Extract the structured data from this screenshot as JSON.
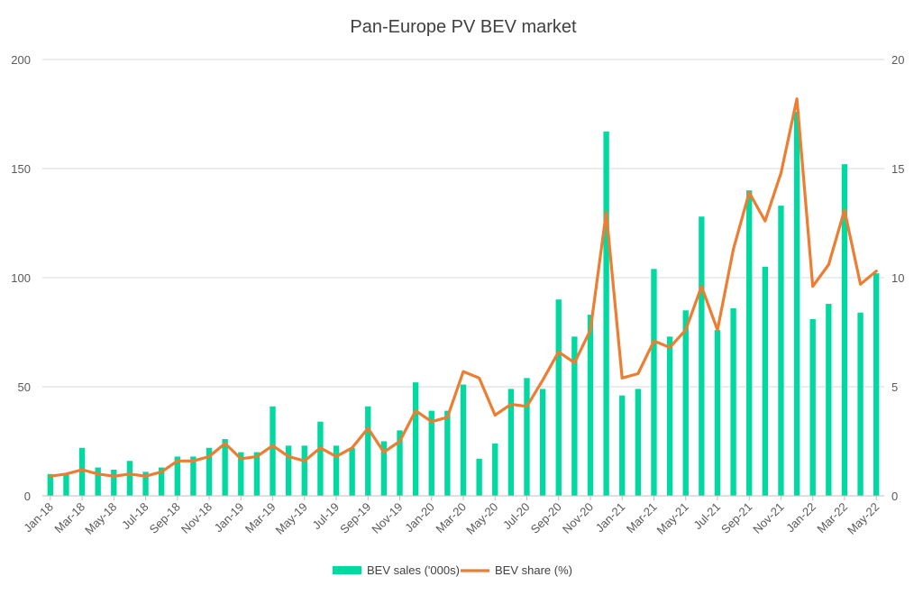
{
  "chart_data": {
    "type": "bar+line",
    "title": "Pan-Europe PV BEV market",
    "xlabel": "",
    "ylabel_left": "",
    "ylabel_right": "",
    "ylim_left": [
      0,
      200
    ],
    "ylim_right": [
      0,
      20
    ],
    "yticks_left": [
      "0",
      "50",
      "100",
      "150",
      "200"
    ],
    "yticks_right": [
      "0",
      "5",
      "10",
      "15",
      "20"
    ],
    "grid": true,
    "legend_position": "bottom-center",
    "categories": [
      "Jan-18",
      "Feb-18",
      "Mar-18",
      "Apr-18",
      "May-18",
      "Jun-18",
      "Jul-18",
      "Aug-18",
      "Sep-18",
      "Oct-18",
      "Nov-18",
      "Dec-18",
      "Jan-19",
      "Feb-19",
      "Mar-19",
      "Apr-19",
      "May-19",
      "Jun-19",
      "Jul-19",
      "Aug-19",
      "Sep-19",
      "Oct-19",
      "Nov-19",
      "Dec-19",
      "Jan-20",
      "Feb-20",
      "Mar-20",
      "Apr-20",
      "May-20",
      "Jun-20",
      "Jul-20",
      "Aug-20",
      "Sep-20",
      "Oct-20",
      "Nov-20",
      "Dec-20",
      "Jan-21",
      "Feb-21",
      "Mar-21",
      "Apr-21",
      "May-21",
      "Jun-21",
      "Jul-21",
      "Aug-21",
      "Sep-21",
      "Oct-21",
      "Nov-21",
      "Dec-21",
      "Jan-22",
      "Feb-22",
      "Mar-22",
      "Apr-22",
      "May-22"
    ],
    "x_tick_labels": [
      "Jan-18",
      "Mar-18",
      "May-18",
      "Jul-18",
      "Sep-18",
      "Nov-18",
      "Jan-19",
      "Mar-19",
      "May-19",
      "Jul-19",
      "Sep-19",
      "Nov-19",
      "Jan-20",
      "Mar-20",
      "May-20",
      "Jul-20",
      "Sep-20",
      "Nov-20",
      "Jan-21",
      "Mar-21",
      "May-21",
      "Jul-21",
      "Sep-21",
      "Nov-21",
      "Jan-22",
      "Mar-22",
      "May-22"
    ],
    "series": [
      {
        "name": "BEV sales ('000s)",
        "type": "bar",
        "axis": "left",
        "color": "#00D9A0",
        "values": [
          10,
          10,
          22,
          13,
          12,
          16,
          11,
          13,
          18,
          18,
          22,
          26,
          20,
          20,
          41,
          23,
          23,
          34,
          23,
          22,
          41,
          25,
          30,
          52,
          39,
          39,
          51,
          17,
          24,
          49,
          54,
          49,
          90,
          73,
          83,
          167,
          46,
          49,
          104,
          73,
          85,
          128,
          76,
          86,
          140,
          105,
          133,
          176,
          81,
          88,
          152,
          84,
          102
        ]
      },
      {
        "name": "BEV share (%)",
        "type": "line",
        "axis": "right",
        "color": "#ED7D31",
        "values": [
          0.9,
          1.0,
          1.2,
          1.0,
          0.9,
          1.0,
          0.9,
          1.1,
          1.6,
          1.6,
          1.8,
          2.4,
          1.7,
          1.8,
          2.3,
          1.8,
          1.6,
          2.2,
          1.8,
          2.2,
          3.1,
          2.0,
          2.5,
          3.9,
          3.4,
          3.6,
          5.7,
          5.4,
          3.7,
          4.2,
          4.1,
          5.3,
          6.6,
          6.1,
          7.6,
          13.0,
          5.4,
          5.6,
          7.1,
          6.8,
          7.6,
          9.6,
          7.6,
          11.3,
          13.9,
          12.6,
          14.8,
          18.2,
          9.6,
          10.6,
          13.1,
          9.7,
          10.3
        ]
      }
    ]
  }
}
